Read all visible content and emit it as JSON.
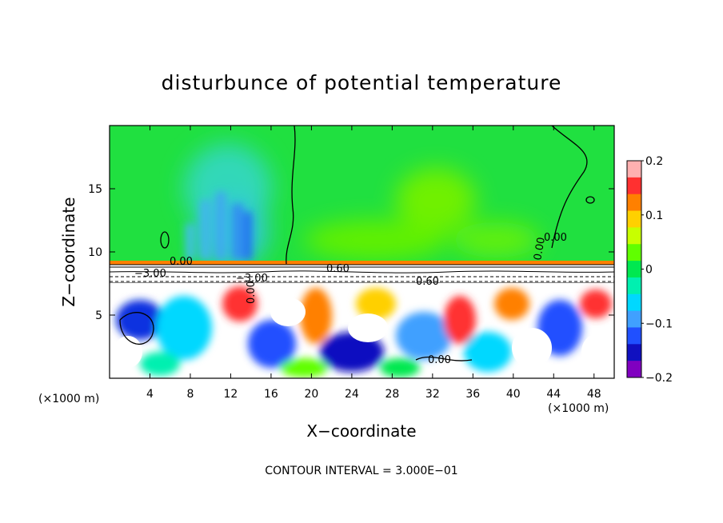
{
  "chart_data": {
    "type": "heatmap",
    "title": "disturbunce of potential temperature",
    "xlabel": "X−coordinate",
    "ylabel": "Z−coordinate",
    "x_unit_left": "(×1000 m)",
    "x_unit_right": "(×1000 m)",
    "xlim": [
      0,
      50
    ],
    "ylim": [
      0,
      20
    ],
    "x_ticks": [
      "4",
      "8",
      "12",
      "16",
      "20",
      "24",
      "28",
      "32",
      "36",
      "40",
      "44",
      "48"
    ],
    "y_ticks": [
      "5",
      "10",
      "15"
    ],
    "colorbar": {
      "range": [
        -0.2,
        0.2
      ],
      "tick_labels": [
        "0.2",
        "0.1",
        "0",
        "−0.1",
        "−0.2"
      ],
      "colors": [
        "#ffb0b0",
        "#ff3030",
        "#ff8000",
        "#ffd000",
        "#c8ff00",
        "#60ff00",
        "#00e850",
        "#00f0b0",
        "#00d8ff",
        "#40a0ff",
        "#2050ff",
        "#1010c0",
        "#8000c0"
      ]
    },
    "contour_labels": [
      "0.00",
      "0.00",
      "0.00",
      "0.00",
      "0.00",
      "0.60",
      "0.60",
      "−3.00",
      "−3.00"
    ],
    "contour_interval_text": "CONTOUR INTERVAL = 3.000E−01"
  },
  "colors": {
    "background_field": "#20e040",
    "cool_plume": "#40d0b0",
    "warm_patch": "#70f000",
    "white_region": "#ffffff"
  }
}
